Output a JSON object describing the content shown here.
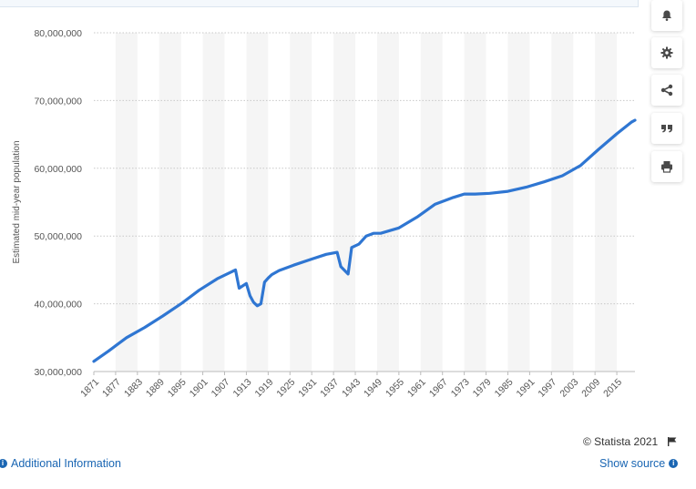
{
  "chart_data": {
    "type": "line",
    "title": "",
    "xlabel": "",
    "ylabel": "Estimated mid-year population",
    "ylim": [
      30000000,
      80000000
    ],
    "yticks": [
      30000000,
      40000000,
      50000000,
      60000000,
      70000000,
      80000000
    ],
    "ytick_labels": [
      "30,000,000",
      "40,000,000",
      "50,000,000",
      "60,000,000",
      "70,000,000",
      "80,000,000"
    ],
    "xlim": [
      1871,
      2020
    ],
    "xtick_labels": [
      "1871",
      "1877",
      "1883",
      "1889",
      "1895",
      "1901",
      "1907",
      "1913",
      "1919",
      "1925",
      "1931",
      "1937",
      "1943",
      "1949",
      "1955",
      "1961",
      "1967",
      "1973",
      "1979",
      "1985",
      "1991",
      "1997",
      "2003",
      "2009",
      "2015"
    ],
    "series": [
      {
        "name": "Estimated mid-year population",
        "color": "#2f76d2",
        "points": [
          [
            1871,
            31500000
          ],
          [
            1875,
            33000000
          ],
          [
            1880,
            35000000
          ],
          [
            1885,
            36500000
          ],
          [
            1890,
            38200000
          ],
          [
            1895,
            40000000
          ],
          [
            1900,
            42000000
          ],
          [
            1905,
            43700000
          ],
          [
            1910,
            45000000
          ],
          [
            1911,
            42300000
          ],
          [
            1913,
            43000000
          ],
          [
            1914,
            41200000
          ],
          [
            1915,
            40200000
          ],
          [
            1916,
            39700000
          ],
          [
            1917,
            40000000
          ],
          [
            1918,
            43200000
          ],
          [
            1919,
            43800000
          ],
          [
            1920,
            44300000
          ],
          [
            1922,
            44900000
          ],
          [
            1926,
            45700000
          ],
          [
            1931,
            46600000
          ],
          [
            1935,
            47300000
          ],
          [
            1938,
            47600000
          ],
          [
            1939,
            45500000
          ],
          [
            1941,
            44400000
          ],
          [
            1942,
            48300000
          ],
          [
            1944,
            48800000
          ],
          [
            1946,
            50000000
          ],
          [
            1948,
            50400000
          ],
          [
            1950,
            50400000
          ],
          [
            1955,
            51200000
          ],
          [
            1960,
            52800000
          ],
          [
            1965,
            54700000
          ],
          [
            1970,
            55700000
          ],
          [
            1973,
            56200000
          ],
          [
            1976,
            56200000
          ],
          [
            1980,
            56300000
          ],
          [
            1985,
            56600000
          ],
          [
            1990,
            57200000
          ],
          [
            1995,
            58000000
          ],
          [
            2000,
            58900000
          ],
          [
            2005,
            60400000
          ],
          [
            2010,
            62800000
          ],
          [
            2015,
            65100000
          ],
          [
            2019,
            66800000
          ],
          [
            2020,
            67100000
          ]
        ]
      }
    ]
  },
  "toolbar": {
    "buttons": [
      {
        "name": "notification-button",
        "icon": "bell-icon"
      },
      {
        "name": "settings-button",
        "icon": "gear-icon"
      },
      {
        "name": "share-button",
        "icon": "share-icon"
      },
      {
        "name": "cite-button",
        "icon": "quote-icon"
      },
      {
        "name": "print-button",
        "icon": "print-icon"
      }
    ]
  },
  "footer": {
    "credit": "© Statista 2021",
    "additional_info": "Additional Information",
    "show_source": "Show source",
    "info_glyph": "i"
  }
}
